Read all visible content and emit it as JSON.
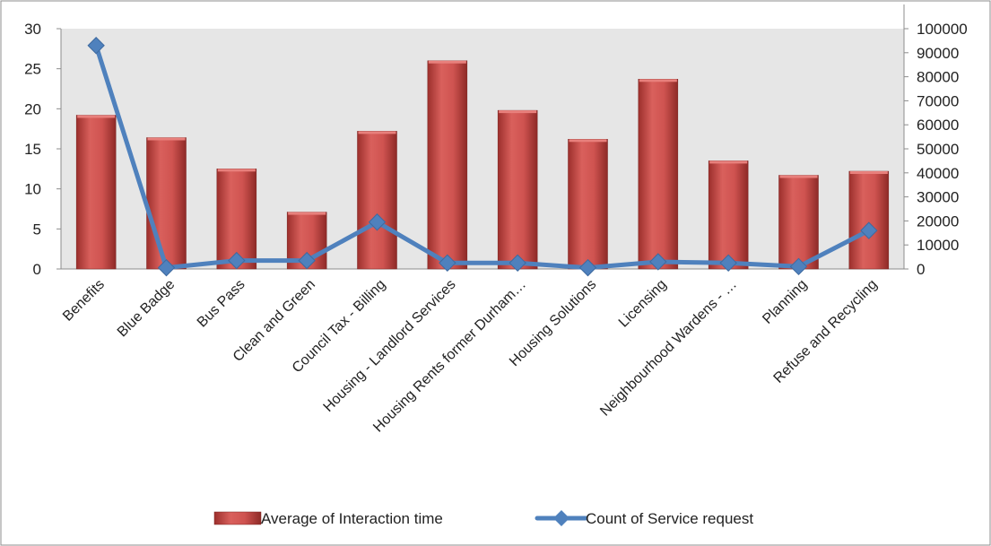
{
  "chart_data": {
    "type": "bar",
    "categories": [
      "Benefits",
      "Blue Badge",
      "Bus Pass",
      "Clean and Green",
      "Council Tax - Billing",
      "Housing - Landlord Services",
      "Housing Rents former Durham…",
      "Housing Solutions",
      "Licensing",
      "Neighbourhood Wardens - …",
      "Planning",
      "Refuse and Recycling"
    ],
    "series": [
      {
        "name": "Average of Interaction time",
        "type": "bar",
        "axis": "left",
        "values": [
          19.2,
          16.4,
          12.5,
          7.1,
          17.2,
          26.0,
          19.8,
          16.2,
          23.7,
          13.5,
          11.7,
          12.2
        ]
      },
      {
        "name": "Count of Service request",
        "type": "line",
        "axis": "right",
        "values": [
          93000,
          500,
          3500,
          3500,
          19500,
          2500,
          2500,
          500,
          3000,
          2500,
          1000,
          16000
        ]
      }
    ],
    "y_left": {
      "min": 0,
      "max": 30,
      "ticks": [
        0,
        5,
        10,
        15,
        20,
        25,
        30
      ]
    },
    "y_right": {
      "min": 0,
      "max": 100000,
      "ticks": [
        0,
        10000,
        20000,
        30000,
        40000,
        50000,
        60000,
        70000,
        80000,
        90000,
        100000
      ]
    },
    "title": "",
    "legend_position": "bottom",
    "colors": {
      "bar": "#c0504d",
      "line": "#4f81bd",
      "plot_bg": "#e6e6e6"
    }
  }
}
